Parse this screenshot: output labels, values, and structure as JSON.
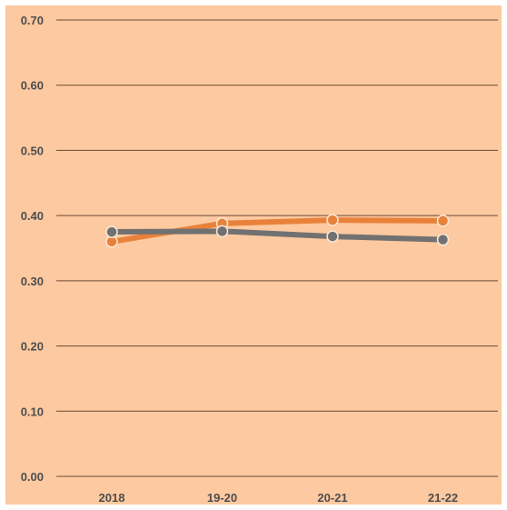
{
  "chart_data": {
    "type": "line",
    "categories": [
      "2018",
      "19-20",
      "20-21",
      "21-22"
    ],
    "yticks": [
      "0.00",
      "0.10",
      "0.20",
      "0.30",
      "0.40",
      "0.50",
      "0.60",
      "0.70"
    ],
    "ylim": [
      0,
      0.7
    ],
    "grid": true,
    "legend": "none",
    "series": [
      {
        "color": "#e8823a",
        "values": [
          0.36,
          0.388,
          0.393,
          0.392
        ]
      },
      {
        "color": "#717171",
        "values": [
          0.375,
          0.376,
          0.368,
          0.363
        ]
      }
    ]
  }
}
